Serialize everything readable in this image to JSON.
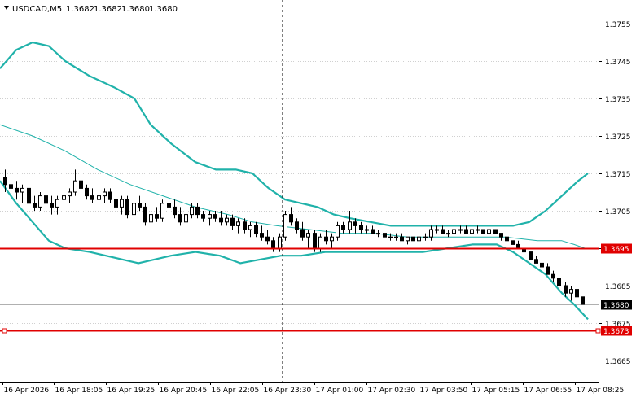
{
  "header": {
    "symbol": "USDCAD,M5",
    "o": "1.3682",
    "h": "1.3682",
    "l": "1.3680",
    "c": "1.3680"
  },
  "chart_data": {
    "type": "candlestick",
    "title": "",
    "price_range": [
      1.3661,
      1.3761
    ],
    "y_ticks": [
      "1.3755",
      "1.3745",
      "1.3735",
      "1.3725",
      "1.3715",
      "1.3705",
      "1.3695",
      "1.3685",
      "1.3675",
      "1.3665"
    ],
    "x_ticks": [
      "16 Apr 2026",
      "16 Apr 18:05",
      "16 Apr 19:25",
      "16 Apr 20:45",
      "16 Apr 22:05",
      "16 Apr 23:30",
      "17 Apr 01:00",
      "17 Apr 02:30",
      "17 Apr 03:50",
      "17 Apr 05:15",
      "17 Apr 06:55",
      "17 Apr 08:25"
    ],
    "current_price": "1.3680",
    "horizontal_levels": [
      {
        "price": 1.3695,
        "label": "1.3695",
        "color": "#e00000"
      },
      {
        "price": 1.3673,
        "label": "1.3673",
        "color": "#e00000"
      }
    ],
    "bollinger": {
      "color": "#20b2aa",
      "upper": [
        [
          0,
          1.3743
        ],
        [
          20,
          1.3748
        ],
        [
          40,
          1.375
        ],
        [
          60,
          1.3749
        ],
        [
          80,
          1.3745
        ],
        [
          110,
          1.3741
        ],
        [
          140,
          1.3738
        ],
        [
          165,
          1.3735
        ],
        [
          185,
          1.3728
        ],
        [
          210,
          1.3723
        ],
        [
          240,
          1.3718
        ],
        [
          265,
          1.3716
        ],
        [
          290,
          1.3716
        ],
        [
          310,
          1.3715
        ],
        [
          330,
          1.3711
        ],
        [
          350,
          1.3708
        ],
        [
          370,
          1.3707
        ],
        [
          390,
          1.3706
        ],
        [
          410,
          1.3704
        ],
        [
          430,
          1.3703
        ],
        [
          455,
          1.3702
        ],
        [
          480,
          1.3701
        ],
        [
          510,
          1.3701
        ],
        [
          560,
          1.3701
        ],
        [
          600,
          1.3701
        ],
        [
          630,
          1.3701
        ],
        [
          650,
          1.3702
        ],
        [
          670,
          1.3705
        ],
        [
          690,
          1.3709
        ],
        [
          710,
          1.3713
        ],
        [
          722,
          1.3715
        ]
      ],
      "middle": [
        [
          0,
          1.3728
        ],
        [
          40,
          1.3725
        ],
        [
          80,
          1.3721
        ],
        [
          120,
          1.3716
        ],
        [
          160,
          1.3712
        ],
        [
          200,
          1.3709
        ],
        [
          240,
          1.3706
        ],
        [
          280,
          1.3704
        ],
        [
          310,
          1.3702
        ],
        [
          340,
          1.3701
        ],
        [
          380,
          1.37
        ],
        [
          420,
          1.3699
        ],
        [
          460,
          1.3699
        ],
        [
          500,
          1.3698
        ],
        [
          540,
          1.3698
        ],
        [
          580,
          1.3698
        ],
        [
          620,
          1.3698
        ],
        [
          660,
          1.3697
        ],
        [
          690,
          1.3697
        ],
        [
          705,
          1.3696
        ],
        [
          718,
          1.3695
        ]
      ],
      "lower": [
        [
          0,
          1.3713
        ],
        [
          20,
          1.3707
        ],
        [
          40,
          1.3702
        ],
        [
          60,
          1.3697
        ],
        [
          80,
          1.3695
        ],
        [
          110,
          1.3694
        ],
        [
          130,
          1.3693
        ],
        [
          150,
          1.3692
        ],
        [
          170,
          1.3691
        ],
        [
          190,
          1.3692
        ],
        [
          210,
          1.3693
        ],
        [
          240,
          1.3694
        ],
        [
          270,
          1.3693
        ],
        [
          295,
          1.3691
        ],
        [
          320,
          1.3692
        ],
        [
          345,
          1.3693
        ],
        [
          370,
          1.3693
        ],
        [
          400,
          1.3694
        ],
        [
          450,
          1.3694
        ],
        [
          520,
          1.3694
        ],
        [
          550,
          1.3695
        ],
        [
          580,
          1.3696
        ],
        [
          610,
          1.3696
        ],
        [
          630,
          1.3694
        ],
        [
          650,
          1.3691
        ],
        [
          670,
          1.3688
        ],
        [
          690,
          1.3683
        ],
        [
          705,
          1.368
        ],
        [
          722,
          1.3676
        ]
      ]
    },
    "candles": [
      [
        1.3714,
        1.3716,
        1.371,
        1.3712
      ],
      [
        1.3712,
        1.3716,
        1.3709,
        1.3711
      ],
      [
        1.3711,
        1.3713,
        1.3708,
        1.371
      ],
      [
        1.371,
        1.3712,
        1.3707,
        1.3711
      ],
      [
        1.3711,
        1.3713,
        1.3706,
        1.3707
      ],
      [
        1.3707,
        1.3709,
        1.3705,
        1.3706
      ],
      [
        1.3706,
        1.371,
        1.3705,
        1.3709
      ],
      [
        1.3709,
        1.3711,
        1.3706,
        1.3707
      ],
      [
        1.3707,
        1.3709,
        1.3704,
        1.3706
      ],
      [
        1.3706,
        1.3709,
        1.3704,
        1.3708
      ],
      [
        1.3708,
        1.371,
        1.3706,
        1.3709
      ],
      [
        1.3709,
        1.3711,
        1.3707,
        1.371
      ],
      [
        1.371,
        1.3716,
        1.3709,
        1.3713
      ],
      [
        1.3713,
        1.3715,
        1.371,
        1.3711
      ],
      [
        1.3711,
        1.3712,
        1.3708,
        1.3709
      ],
      [
        1.3709,
        1.3711,
        1.3707,
        1.3708
      ],
      [
        1.3708,
        1.371,
        1.3706,
        1.3709
      ],
      [
        1.3709,
        1.3711,
        1.3707,
        1.371
      ],
      [
        1.371,
        1.3711,
        1.3707,
        1.3708
      ],
      [
        1.3708,
        1.3709,
        1.3705,
        1.3706
      ],
      [
        1.3706,
        1.3709,
        1.3704,
        1.3708
      ],
      [
        1.3708,
        1.3709,
        1.3703,
        1.3704
      ],
      [
        1.3704,
        1.3708,
        1.3703,
        1.3707
      ],
      [
        1.3707,
        1.3709,
        1.3705,
        1.3706
      ],
      [
        1.3706,
        1.3707,
        1.3701,
        1.3702
      ],
      [
        1.3702,
        1.3705,
        1.37,
        1.3704
      ],
      [
        1.3704,
        1.3706,
        1.3702,
        1.3703
      ],
      [
        1.3703,
        1.3708,
        1.3702,
        1.3707
      ],
      [
        1.3707,
        1.3709,
        1.3705,
        1.3706
      ],
      [
        1.3706,
        1.3708,
        1.3703,
        1.3704
      ],
      [
        1.3704,
        1.3706,
        1.3701,
        1.3702
      ],
      [
        1.3702,
        1.3705,
        1.3701,
        1.3704
      ],
      [
        1.3704,
        1.3707,
        1.3703,
        1.3706
      ],
      [
        1.3706,
        1.3707,
        1.3703,
        1.3704
      ],
      [
        1.3704,
        1.3705,
        1.3702,
        1.3703
      ],
      [
        1.3703,
        1.3705,
        1.3701,
        1.3704
      ],
      [
        1.3704,
        1.3705,
        1.3702,
        1.3703
      ],
      [
        1.3703,
        1.3705,
        1.3701,
        1.3702
      ],
      [
        1.3702,
        1.3704,
        1.3701,
        1.3703
      ],
      [
        1.3703,
        1.3704,
        1.37,
        1.3701
      ],
      [
        1.3701,
        1.3703,
        1.3699,
        1.3702
      ],
      [
        1.3702,
        1.3703,
        1.3699,
        1.37
      ],
      [
        1.37,
        1.3702,
        1.3698,
        1.3701
      ],
      [
        1.3701,
        1.3702,
        1.3698,
        1.3699
      ],
      [
        1.3699,
        1.3701,
        1.3697,
        1.3698
      ],
      [
        1.3698,
        1.37,
        1.3696,
        1.3697
      ],
      [
        1.3697,
        1.3698,
        1.3694,
        1.3695
      ],
      [
        1.3695,
        1.3699,
        1.3694,
        1.3698
      ],
      [
        1.3698,
        1.3705,
        1.3697,
        1.3704
      ],
      [
        1.3704,
        1.3706,
        1.3701,
        1.3702
      ],
      [
        1.3702,
        1.3703,
        1.3699,
        1.37
      ],
      [
        1.37,
        1.3702,
        1.3697,
        1.3698
      ],
      [
        1.3698,
        1.37,
        1.3695,
        1.3699
      ],
      [
        1.3699,
        1.37,
        1.3694,
        1.3695
      ],
      [
        1.3695,
        1.3699,
        1.3694,
        1.3698
      ],
      [
        1.3698,
        1.37,
        1.3696,
        1.3697
      ],
      [
        1.3697,
        1.3699,
        1.3695,
        1.3698
      ],
      [
        1.3698,
        1.3702,
        1.3697,
        1.3701
      ],
      [
        1.3701,
        1.3702,
        1.3699,
        1.37
      ],
      [
        1.37,
        1.3705,
        1.3699,
        1.3702
      ],
      [
        1.3702,
        1.3703,
        1.3699,
        1.3701
      ],
      [
        1.3701,
        1.3702,
        1.3699,
        1.37
      ],
      [
        1.37,
        1.3701,
        1.3699,
        1.37
      ],
      [
        1.37,
        1.3701,
        1.3699,
        1.3699
      ],
      [
        1.3699,
        1.37,
        1.3698,
        1.3699
      ],
      [
        1.3699,
        1.3699,
        1.3698,
        1.3698
      ],
      [
        1.3698,
        1.3699,
        1.3697,
        1.3698
      ],
      [
        1.3698,
        1.3699,
        1.3697,
        1.3698
      ],
      [
        1.3698,
        1.3699,
        1.3697,
        1.3697
      ],
      [
        1.3697,
        1.3698,
        1.3696,
        1.3698
      ],
      [
        1.3698,
        1.3698,
        1.3697,
        1.3697
      ],
      [
        1.3697,
        1.3698,
        1.3696,
        1.3698
      ],
      [
        1.3698,
        1.3699,
        1.3697,
        1.3698
      ],
      [
        1.3698,
        1.3701,
        1.3697,
        1.37
      ],
      [
        1.37,
        1.3701,
        1.3699,
        1.37
      ],
      [
        1.37,
        1.3701,
        1.3699,
        1.3699
      ],
      [
        1.3699,
        1.37,
        1.3698,
        1.3699
      ],
      [
        1.3699,
        1.37,
        1.3698,
        1.37
      ],
      [
        1.37,
        1.3701,
        1.3699,
        1.37
      ],
      [
        1.37,
        1.3701,
        1.3699,
        1.3699
      ],
      [
        1.3699,
        1.3701,
        1.3699,
        1.37
      ],
      [
        1.37,
        1.3701,
        1.3699,
        1.37
      ],
      [
        1.37,
        1.37,
        1.3699,
        1.3699
      ],
      [
        1.3699,
        1.37,
        1.3698,
        1.37
      ],
      [
        1.37,
        1.37,
        1.3699,
        1.3699
      ],
      [
        1.3699,
        1.3699,
        1.3697,
        1.3698
      ],
      [
        1.3698,
        1.3698,
        1.3697,
        1.3697
      ],
      [
        1.3697,
        1.3697,
        1.3696,
        1.3696
      ],
      [
        1.3696,
        1.3697,
        1.3695,
        1.3695
      ],
      [
        1.3695,
        1.3696,
        1.3694,
        1.3694
      ],
      [
        1.3694,
        1.3694,
        1.3692,
        1.3692
      ],
      [
        1.3692,
        1.3693,
        1.3691,
        1.3691
      ],
      [
        1.3691,
        1.3692,
        1.3689,
        1.369
      ],
      [
        1.369,
        1.3691,
        1.3688,
        1.3688
      ],
      [
        1.3688,
        1.3689,
        1.3686,
        1.3687
      ],
      [
        1.3687,
        1.3688,
        1.3685,
        1.3685
      ],
      [
        1.3685,
        1.3686,
        1.3682,
        1.3683
      ],
      [
        1.3683,
        1.3685,
        1.3681,
        1.3684
      ],
      [
        1.3684,
        1.3685,
        1.3681,
        1.3682
      ],
      [
        1.3682,
        1.3682,
        1.368,
        1.368
      ]
    ]
  }
}
